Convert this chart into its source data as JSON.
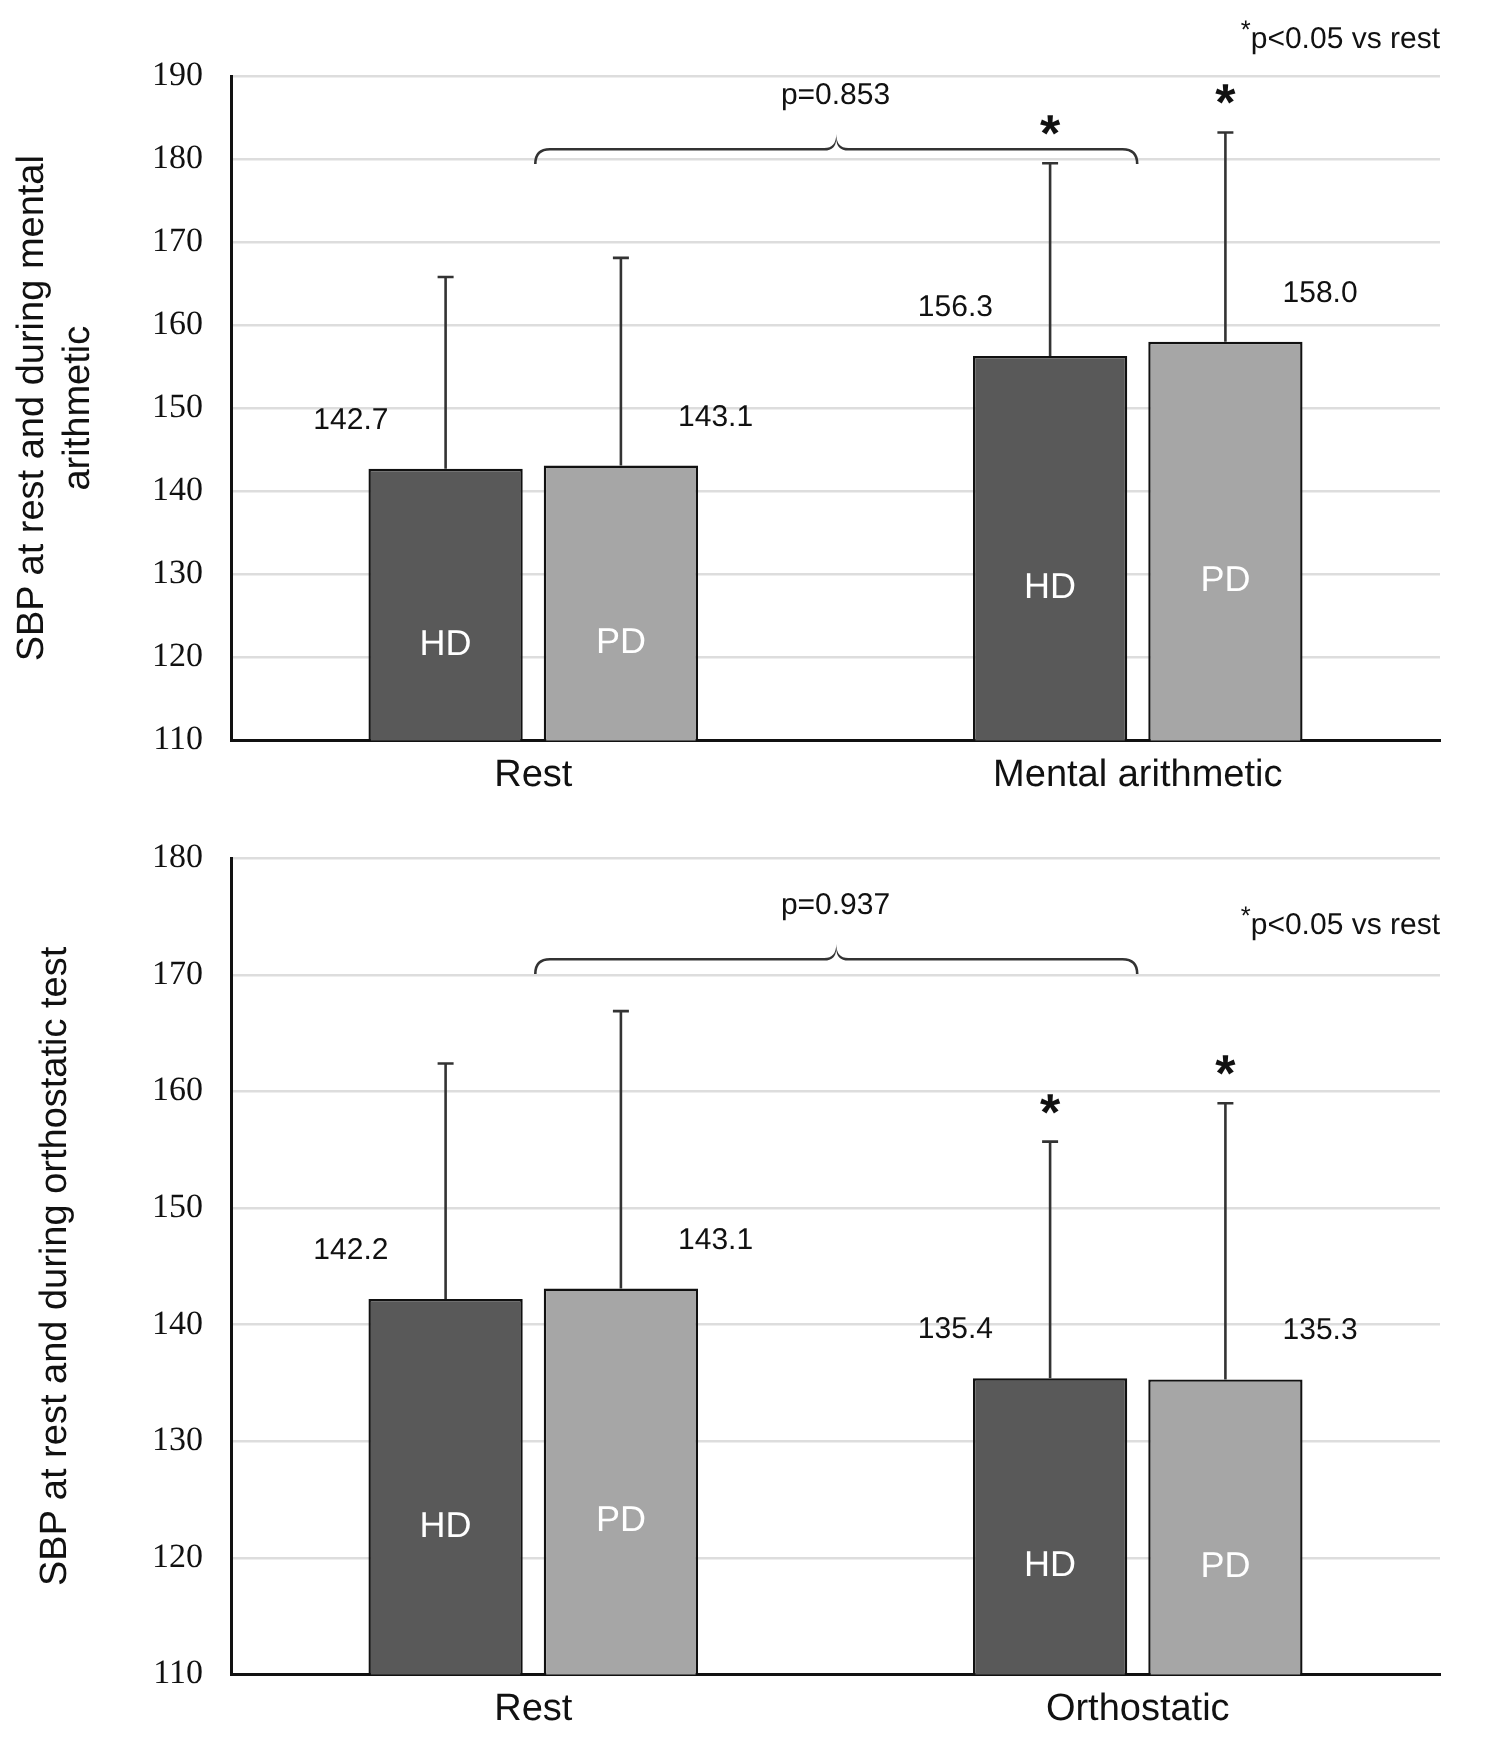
{
  "chart_data": [
    {
      "type": "bar",
      "ylabel": "SBP at rest and during mental arithmetic",
      "categories": [
        "Rest",
        "Mental arithmetic"
      ],
      "series": [
        {
          "name": "HD",
          "color": "#595959",
          "values": [
            142.7,
            156.3
          ],
          "value_labels": [
            "142.7",
            "156.3"
          ],
          "errors": [
            [
              142.7,
              165.8
            ],
            [
              156.3,
              179.5
            ]
          ]
        },
        {
          "name": "PD",
          "color": "#a6a6a6",
          "values": [
            143.1,
            158.0
          ],
          "value_labels": [
            "143.1",
            "158.0"
          ],
          "errors": [
            [
              143.1,
              168.1
            ],
            [
              158.0,
              183.2
            ]
          ]
        }
      ],
      "ylim": [
        110,
        190
      ],
      "yticks": [
        110,
        120,
        130,
        140,
        150,
        160,
        170,
        180,
        190
      ],
      "grid": "y",
      "legend": false,
      "data_labels": true,
      "annotations": [
        "p=0.853",
        "*",
        "*",
        "$^{*}$p<0.05 vs rest"
      ]
    },
    {
      "type": "bar",
      "ylabel": "SBP at rest and during orthostatic test",
      "categories": [
        "Rest",
        "Orthostatic"
      ],
      "series": [
        {
          "name": "HD",
          "color": "#595959",
          "values": [
            142.2,
            135.4
          ],
          "value_labels": [
            "142.2",
            "135.4"
          ],
          "errors": [
            [
              142.2,
              162.4
            ],
            [
              135.4,
              155.7
            ]
          ]
        },
        {
          "name": "PD",
          "color": "#a6a6a6",
          "values": [
            143.1,
            135.3
          ],
          "value_labels": [
            "143.1",
            "135.3"
          ],
          "errors": [
            [
              143.1,
              166.9
            ],
            [
              135.3,
              159.0
            ]
          ]
        }
      ],
      "ylim": [
        110,
        180
      ],
      "yticks": [
        110,
        120,
        130,
        140,
        150,
        160,
        170,
        180
      ],
      "grid": "y",
      "legend": false,
      "data_labels": true,
      "annotations": [
        "p=0.937",
        "*",
        "*",
        "$^{*}$p<0.05 vs rest"
      ]
    }
  ]
}
